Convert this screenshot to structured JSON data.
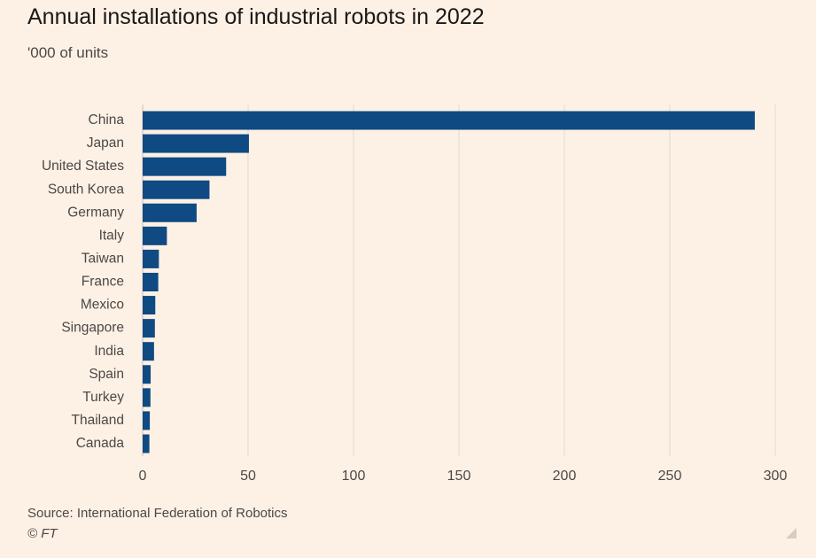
{
  "header": {
    "title": "Annual installations of industrial robots in 2022",
    "subtitle": "'000 of units"
  },
  "footer": {
    "source": "Source: International Federation of Robotics",
    "credit": "© FT"
  },
  "colors": {
    "background": "#fdf1e6",
    "bar": "#0f4a82",
    "gridline": "#e3d9d0",
    "text": "#4d4845"
  },
  "chart_data": {
    "type": "bar",
    "orientation": "horizontal",
    "title": "Annual installations of industrial robots in 2022",
    "subtitle": "'000 of units",
    "categories": [
      "China",
      "Japan",
      "United States",
      "South Korea",
      "Germany",
      "Italy",
      "Taiwan",
      "France",
      "Mexico",
      "Singapore",
      "India",
      "Spain",
      "Turkey",
      "Thailand",
      "Canada"
    ],
    "values": [
      290.3,
      50.4,
      39.6,
      31.7,
      25.6,
      11.5,
      7.7,
      7.4,
      6.0,
      5.8,
      5.4,
      3.8,
      3.7,
      3.4,
      3.2
    ],
    "xlim": [
      0,
      300
    ],
    "xticks": [
      0,
      50,
      100,
      150,
      200,
      250,
      300
    ],
    "grid": true
  }
}
